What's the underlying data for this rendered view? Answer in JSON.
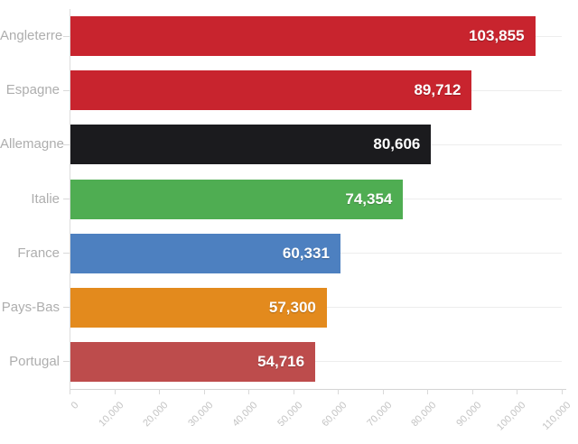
{
  "chart_data": {
    "type": "bar",
    "orientation": "horizontal",
    "title": "",
    "xlabel": "",
    "ylabel": "",
    "legend": "none",
    "grid": "horizontal-category-lines",
    "categories": [
      "Angleterre",
      "Espagne",
      "Allemagne",
      "Italie",
      "France",
      "Pays-Bas",
      "Portugal"
    ],
    "values": [
      103855,
      89712,
      80606,
      74354,
      60331,
      57300,
      54716
    ],
    "value_labels": [
      "103,855",
      "89,712",
      "80,606",
      "74,354",
      "60,331",
      "57,300",
      "54,716"
    ],
    "bar_colors": [
      "#c8242e",
      "#c8242e",
      "#1b1b1e",
      "#4fad52",
      "#4d80c0",
      "#e38a1d",
      "#bd4c4c"
    ],
    "xlim": [
      0,
      110000
    ],
    "x_ticks": [
      0,
      10000,
      20000,
      30000,
      40000,
      50000,
      60000,
      70000,
      80000,
      90000,
      100000,
      110000
    ],
    "x_tick_labels": [
      "0",
      "10,000",
      "20,000",
      "30,000",
      "40,000",
      "50,000",
      "60,000",
      "70,000",
      "80,000",
      "90,000",
      "100,000",
      "110,000"
    ]
  },
  "style": {
    "background": "#ffffff",
    "value_label_color": "#ffffff",
    "category_label_color": "#aeaeae",
    "tick_label_color": "#c4c4c4",
    "gridline_color": "#ededed",
    "axis_line_color": "#d4d4d4"
  }
}
